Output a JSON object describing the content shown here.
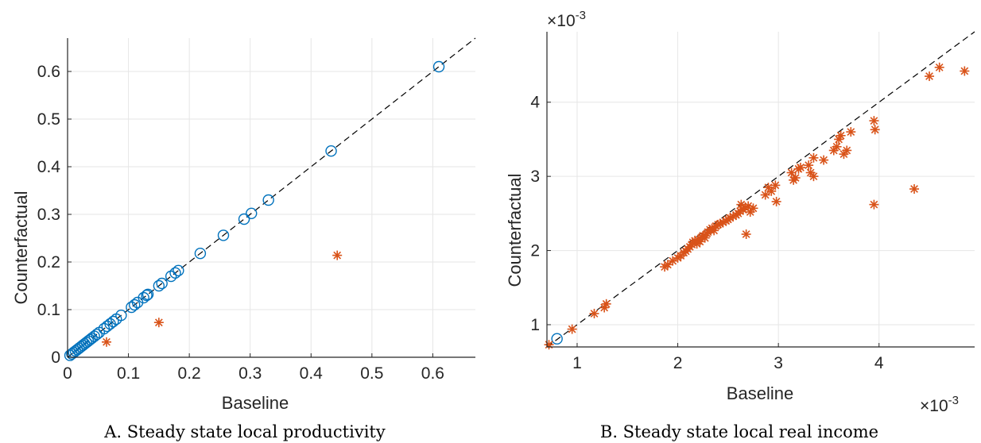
{
  "colors": {
    "circle_series": "#0072bd",
    "star_series": "#d95319",
    "reference_line": "#000000",
    "grid": "#e6e6e6",
    "axis": "#262626"
  },
  "chart_data": [
    {
      "type": "scatter",
      "caption": "A. Steady state local productivity",
      "xlabel": "Baseline",
      "ylabel": "Counterfactual",
      "xlim": [
        0,
        0.67
      ],
      "ylim": [
        0,
        0.67
      ],
      "xticks": [
        "0",
        "0.1",
        "0.2",
        "0.3",
        "0.4",
        "0.5",
        "0.6"
      ],
      "yticks": [
        "0",
        "0.1",
        "0.2",
        "0.3",
        "0.4",
        "0.5",
        "0.6"
      ],
      "grid": true,
      "reference_line": "y = x (dashed)",
      "series": [
        {
          "marker": "circle",
          "points": [
            [
              0.004,
              0.004
            ],
            [
              0.007,
              0.007
            ],
            [
              0.01,
              0.01
            ],
            [
              0.013,
              0.013
            ],
            [
              0.016,
              0.016
            ],
            [
              0.019,
              0.019
            ],
            [
              0.022,
              0.022
            ],
            [
              0.025,
              0.025
            ],
            [
              0.028,
              0.028
            ],
            [
              0.031,
              0.031
            ],
            [
              0.034,
              0.034
            ],
            [
              0.037,
              0.037
            ],
            [
              0.04,
              0.04
            ],
            [
              0.044,
              0.044
            ],
            [
              0.048,
              0.048
            ],
            [
              0.052,
              0.052
            ],
            [
              0.06,
              0.06
            ],
            [
              0.065,
              0.065
            ],
            [
              0.07,
              0.07
            ],
            [
              0.075,
              0.075
            ],
            [
              0.08,
              0.08
            ],
            [
              0.088,
              0.088
            ],
            [
              0.105,
              0.105
            ],
            [
              0.11,
              0.11
            ],
            [
              0.115,
              0.115
            ],
            [
              0.125,
              0.125
            ],
            [
              0.13,
              0.13
            ],
            [
              0.132,
              0.132
            ],
            [
              0.15,
              0.15
            ],
            [
              0.155,
              0.155
            ],
            [
              0.17,
              0.17
            ],
            [
              0.177,
              0.177
            ],
            [
              0.182,
              0.182
            ],
            [
              0.218,
              0.218
            ],
            [
              0.256,
              0.256
            ],
            [
              0.29,
              0.29
            ],
            [
              0.302,
              0.302
            ],
            [
              0.33,
              0.33
            ],
            [
              0.433,
              0.433
            ],
            [
              0.61,
              0.61
            ]
          ]
        },
        {
          "marker": "star",
          "points": [
            [
              0.064,
              0.032
            ],
            [
              0.15,
              0.073
            ],
            [
              0.443,
              0.214
            ]
          ]
        }
      ]
    },
    {
      "type": "scatter",
      "caption": "B. Steady state local real income",
      "xlabel": "Baseline",
      "ylabel": "Counterfactual",
      "x_exponent": "×10-3",
      "y_exponent": "×10-3",
      "xlim": [
        0.7,
        4.95
      ],
      "ylim": [
        0.7,
        4.95
      ],
      "xticks": [
        "1",
        "2",
        "3",
        "4"
      ],
      "yticks": [
        "1",
        "2",
        "3",
        "4"
      ],
      "grid": true,
      "reference_line": "y = x (dashed)",
      "series": [
        {
          "marker": "circle",
          "points": [
            [
              0.8,
              0.81
            ]
          ]
        },
        {
          "marker": "star",
          "points": [
            [
              0.72,
              0.73
            ],
            [
              0.95,
              0.94
            ],
            [
              1.17,
              1.15
            ],
            [
              1.27,
              1.23
            ],
            [
              1.29,
              1.28
            ],
            [
              1.87,
              1.78
            ],
            [
              1.9,
              1.81
            ],
            [
              1.95,
              1.86
            ],
            [
              2.0,
              1.9
            ],
            [
              2.03,
              1.93
            ],
            [
              2.06,
              1.97
            ],
            [
              2.08,
              1.99
            ],
            [
              2.1,
              2.02
            ],
            [
              2.12,
              2.05
            ],
            [
              2.14,
              2.08
            ],
            [
              2.15,
              2.11
            ],
            [
              2.17,
              2.13
            ],
            [
              2.19,
              2.09
            ],
            [
              2.2,
              2.15
            ],
            [
              2.22,
              2.12
            ],
            [
              2.24,
              2.18
            ],
            [
              2.25,
              2.2
            ],
            [
              2.27,
              2.17
            ],
            [
              2.29,
              2.23
            ],
            [
              2.3,
              2.25
            ],
            [
              2.32,
              2.28
            ],
            [
              2.34,
              2.3
            ],
            [
              2.36,
              2.27
            ],
            [
              2.38,
              2.33
            ],
            [
              2.4,
              2.35
            ],
            [
              2.42,
              2.36
            ],
            [
              2.45,
              2.38
            ],
            [
              2.48,
              2.4
            ],
            [
              2.5,
              2.42
            ],
            [
              2.52,
              2.44
            ],
            [
              2.55,
              2.46
            ],
            [
              2.58,
              2.48
            ],
            [
              2.6,
              2.5
            ],
            [
              2.62,
              2.53
            ],
            [
              2.65,
              2.55
            ],
            [
              2.67,
              2.58
            ],
            [
              2.7,
              2.6
            ],
            [
              2.72,
              2.52
            ],
            [
              2.75,
              2.57
            ],
            [
              2.63,
              2.62
            ],
            [
              2.68,
              2.22
            ],
            [
              2.87,
              2.75
            ],
            [
              2.9,
              2.85
            ],
            [
              2.93,
              2.8
            ],
            [
              2.97,
              2.88
            ],
            [
              2.98,
              2.66
            ],
            [
              3.13,
              3.05
            ],
            [
              3.15,
              2.95
            ],
            [
              3.17,
              2.98
            ],
            [
              3.2,
              3.1
            ],
            [
              3.22,
              3.12
            ],
            [
              3.3,
              3.15
            ],
            [
              3.32,
              3.05
            ],
            [
              3.35,
              3.25
            ],
            [
              3.35,
              3.0
            ],
            [
              3.45,
              3.22
            ],
            [
              3.55,
              3.35
            ],
            [
              3.58,
              3.4
            ],
            [
              3.6,
              3.5
            ],
            [
              3.62,
              3.55
            ],
            [
              3.65,
              3.3
            ],
            [
              3.68,
              3.35
            ],
            [
              3.72,
              3.6
            ],
            [
              3.95,
              3.75
            ],
            [
              3.96,
              3.63
            ],
            [
              3.95,
              2.62
            ],
            [
              4.35,
              2.83
            ],
            [
              4.5,
              4.35
            ],
            [
              4.6,
              4.47
            ],
            [
              4.85,
              4.42
            ]
          ]
        }
      ]
    }
  ]
}
